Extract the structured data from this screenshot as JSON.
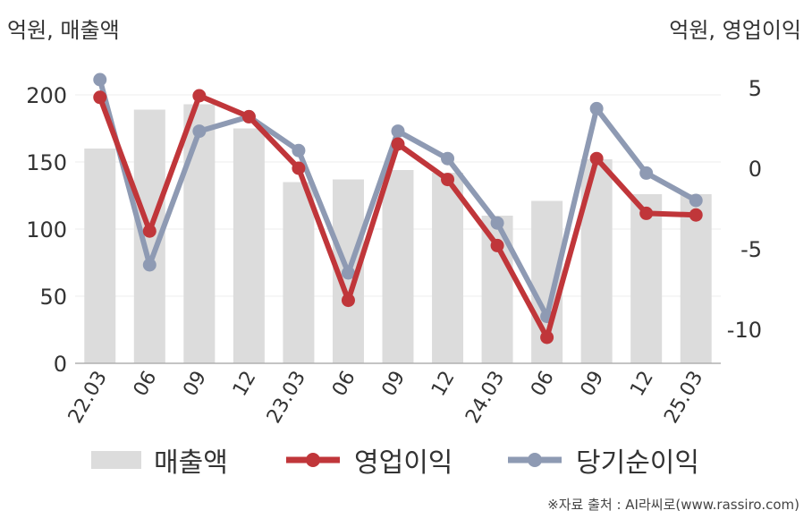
{
  "header": {
    "left_unit": "억원, 매출액",
    "right_unit": "억원, 영업이익"
  },
  "chart_data": {
    "type": "bar",
    "categories": [
      "22.03",
      "06",
      "09",
      "12",
      "23.03",
      "06",
      "09",
      "12",
      "24.03",
      "06",
      "09",
      "12",
      "25.03"
    ],
    "left_axis": {
      "ylim": [
        0,
        200
      ],
      "ticks": [
        0,
        50,
        100,
        150,
        200
      ]
    },
    "right_axis": {
      "ylim": [
        -12,
        5
      ],
      "ticks": [
        -10,
        -5,
        0,
        5
      ]
    },
    "series": [
      {
        "name": "매출액",
        "kind": "bar",
        "axis": "left",
        "color": "#dcdcdc",
        "values": [
          160,
          189,
          193,
          175,
          135,
          137,
          144,
          142,
          110,
          121,
          152,
          126,
          126
        ]
      },
      {
        "name": "영업이익",
        "kind": "line",
        "axis": "right",
        "color": "#c0363a",
        "values": [
          4.4,
          -3.9,
          4.5,
          3.2,
          0.0,
          -8.2,
          1.5,
          -0.7,
          -4.8,
          -10.5,
          0.6,
          -2.8,
          -2.9
        ]
      },
      {
        "name": "당기순이익",
        "kind": "line",
        "axis": "right",
        "color": "#8e9ab3",
        "values": [
          5.5,
          -6.0,
          2.3,
          3.2,
          1.1,
          -6.5,
          2.3,
          0.6,
          -3.4,
          -9.2,
          3.7,
          -0.3,
          -2.0
        ]
      }
    ],
    "grid": true,
    "legend": "bottom"
  },
  "source": "※자료 출처 : AI라씨로(www.rassiro.com)"
}
